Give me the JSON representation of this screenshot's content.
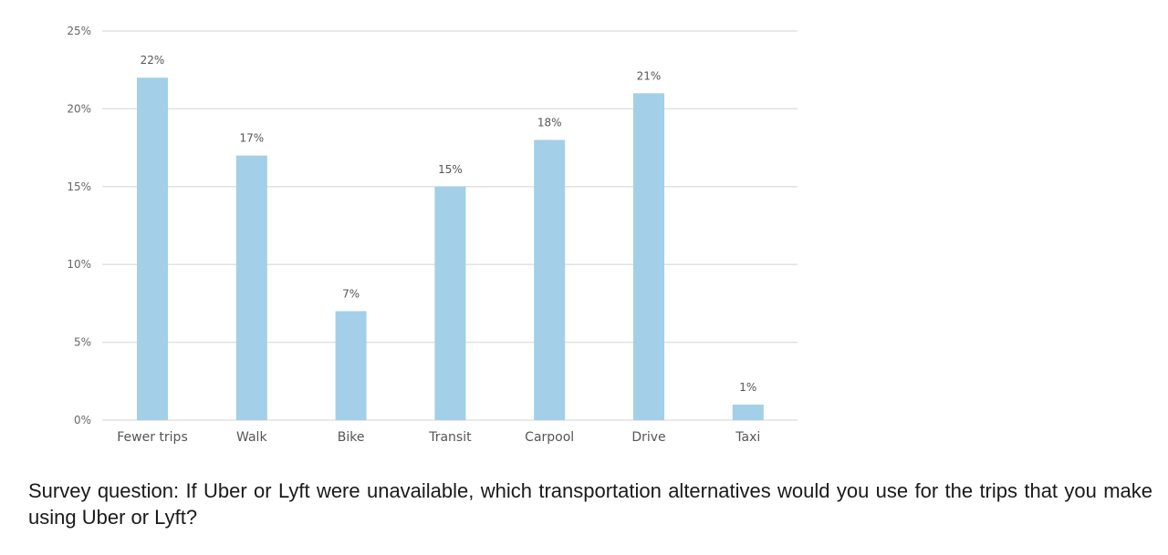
{
  "chart_data": {
    "type": "bar",
    "categories": [
      "Fewer trips",
      "Walk",
      "Bike",
      "Transit",
      "Carpool",
      "Drive",
      "Taxi"
    ],
    "values": [
      22,
      17,
      7,
      15,
      18,
      21,
      1
    ],
    "data_labels": [
      "22%",
      "17%",
      "7%",
      "15%",
      "18%",
      "21%",
      "1%"
    ],
    "ylim": [
      0,
      25
    ],
    "yticks": [
      0,
      5,
      10,
      15,
      20,
      25
    ],
    "ytick_labels": [
      "0%",
      "5%",
      "10%",
      "15%",
      "20%",
      "25%"
    ],
    "grid": true,
    "bar_color": "#a3cfe8",
    "grid_color": "#e2e2e2"
  },
  "caption": "Survey question: If Uber or Lyft were unavailable, which transportation alternatives would you use for the trips that you make using Uber or Lyft?"
}
